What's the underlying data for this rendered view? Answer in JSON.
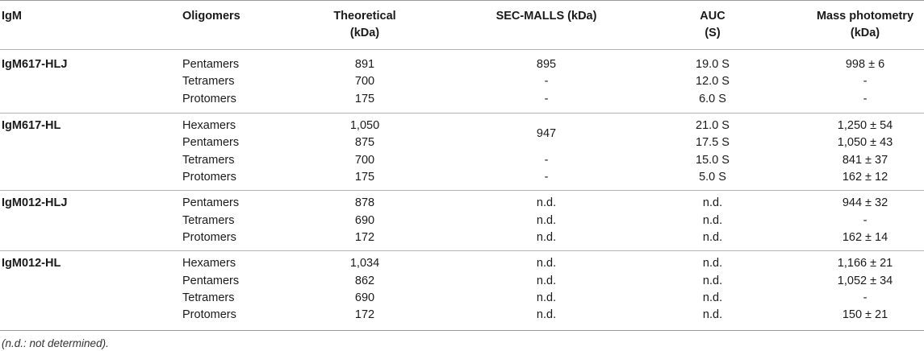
{
  "headers": {
    "igm": "IgM",
    "oligomers": "Oligomers",
    "theoretical": [
      "Theoretical",
      "(kDa)"
    ],
    "sec": "SEC-MALLS (kDa)",
    "auc": [
      "AUC",
      "(S)"
    ],
    "mp": [
      "Mass photometry",
      "(kDa)"
    ]
  },
  "groups": [
    {
      "name": "IgM617-HLJ",
      "rows": [
        {
          "olig": "Pentamers",
          "theo": "891",
          "sec": "895",
          "auc": "19.0 S",
          "mp": "998 ± 6"
        },
        {
          "olig": "Tetramers",
          "theo": "700",
          "sec": "-",
          "auc": "12.0 S",
          "mp": "-"
        },
        {
          "olig": "Protomers",
          "theo": "175",
          "sec": "-",
          "auc": "6.0 S",
          "mp": "-"
        }
      ]
    },
    {
      "name": "IgM617-HL",
      "sec_merged": "947",
      "rows": [
        {
          "olig": "Hexamers",
          "theo": "1,050",
          "sec": "",
          "auc": "21.0 S",
          "mp": "1,250 ± 54"
        },
        {
          "olig": "Pentamers",
          "theo": "875",
          "sec": "",
          "auc": "17.5 S",
          "mp": "1,050 ± 43"
        },
        {
          "olig": "Tetramers",
          "theo": "700",
          "sec": "-",
          "auc": "15.0 S",
          "mp": "841 ± 37"
        },
        {
          "olig": "Protomers",
          "theo": "175",
          "sec": "-",
          "auc": "5.0 S",
          "mp": "162 ± 12"
        }
      ]
    },
    {
      "name": "IgM012-HLJ",
      "rows": [
        {
          "olig": "Pentamers",
          "theo": "878",
          "sec": "n.d.",
          "auc": "n.d.",
          "mp": "944 ± 32"
        },
        {
          "olig": "Tetramers",
          "theo": "690",
          "sec": "n.d.",
          "auc": "n.d.",
          "mp": "-"
        },
        {
          "olig": "Protomers",
          "theo": "172",
          "sec": "n.d.",
          "auc": "n.d.",
          "mp": "162 ± 14"
        }
      ]
    },
    {
      "name": "IgM012-HL",
      "rows": [
        {
          "olig": "Hexamers",
          "theo": "1,034",
          "sec": "n.d.",
          "auc": "n.d.",
          "mp": "1,166 ± 21"
        },
        {
          "olig": "Pentamers",
          "theo": "862",
          "sec": "n.d.",
          "auc": "n.d.",
          "mp": "1,052 ± 34"
        },
        {
          "olig": "Tetramers",
          "theo": "690",
          "sec": "n.d.",
          "auc": "n.d.",
          "mp": "-"
        },
        {
          "olig": "Protomers",
          "theo": "172",
          "sec": "n.d.",
          "auc": "n.d.",
          "mp": "150 ± 21"
        }
      ]
    }
  ],
  "footnote": "(n.d.: not determined)."
}
